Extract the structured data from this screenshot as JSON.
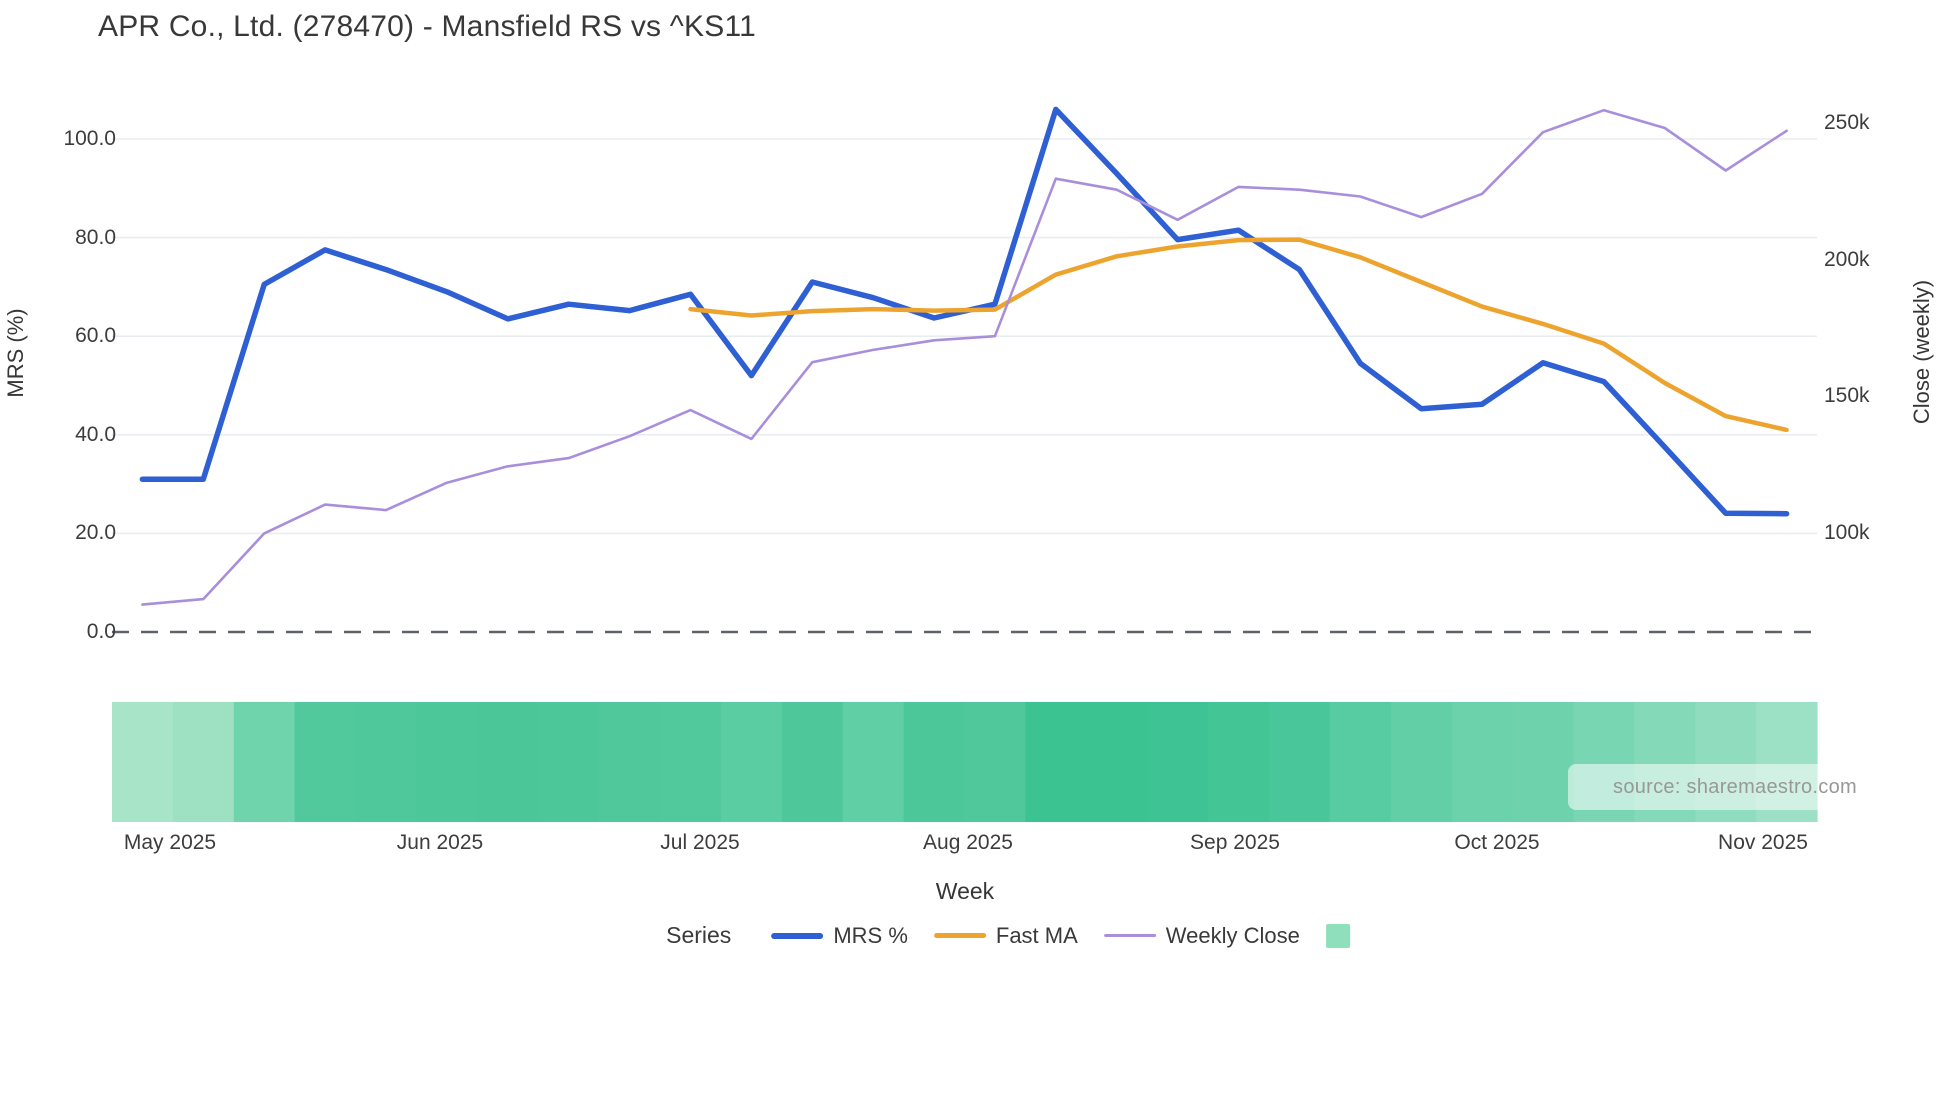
{
  "title": "APR Co., Ltd. (278470) - Mansfield RS vs ^KS11",
  "axes": {
    "left": {
      "label": "MRS (%)",
      "tick_labels": [
        "100.0",
        "80.0",
        "60.0",
        "40.0",
        "20.0",
        "0.0"
      ]
    },
    "right": {
      "label": "Close (weekly)",
      "tick_labels": [
        "250k",
        "200k",
        "150k",
        "100k"
      ]
    },
    "x": {
      "label": "Week",
      "tick_labels": [
        "May 2025",
        "Jun 2025",
        "Jul 2025",
        "Aug 2025",
        "Sep 2025",
        "Oct 2025",
        "Nov 2025"
      ]
    }
  },
  "legend": {
    "title": "Series",
    "items": [
      {
        "label": "MRS %",
        "swatch": "line",
        "color": "#2e5fd3",
        "thickness": 6
      },
      {
        "label": "Fast MA",
        "swatch": "line",
        "color": "#eda42f",
        "thickness": 5
      },
      {
        "label": "Weekly Close",
        "swatch": "line",
        "color": "#a98fdb",
        "thickness": 3.5
      },
      {
        "label": "",
        "swatch": "square",
        "color": "#8edfbc",
        "thickness": 0
      }
    ]
  },
  "source_note": "source: sharemaestro.com",
  "colors": {
    "grid": "#e9edf1",
    "zero_line": "#5f6368",
    "mrs": "#2e5fd3",
    "fast_ma": "#eda42f",
    "weekly_close": "#a98fdb"
  },
  "chart_data": {
    "type": "line",
    "title": "APR Co., Ltd. (278470) - Mansfield RS vs ^KS11",
    "xlabel": "Week",
    "ylabel_left": "MRS (%)",
    "ylabel_right": "Close (weekly)",
    "grid": true,
    "legend_position": "bottom",
    "weeks": 28,
    "x_month_ticks": [
      {
        "label": "May 2025",
        "week_pos": 0.95
      },
      {
        "label": "Jun 2025",
        "week_pos": 5.38
      },
      {
        "label": "Jul 2025",
        "week_pos": 9.65
      },
      {
        "label": "Aug 2025",
        "week_pos": 14.05
      },
      {
        "label": "Sep 2025",
        "week_pos": 18.45
      },
      {
        "label": "Oct 2025",
        "week_pos": 22.74
      },
      {
        "label": "Nov 2025",
        "week_pos": 27.12
      }
    ],
    "left_axis": {
      "tick_values": [
        100,
        80,
        60,
        40,
        20,
        0
      ],
      "range": [
        0,
        110
      ]
    },
    "right_axis": {
      "tick_values_thousands": [
        250,
        200,
        150,
        100
      ],
      "range_thousands": [
        64,
        262
      ]
    },
    "zero_line_dashed": true,
    "series": [
      {
        "name": "MRS %",
        "axis": "left",
        "color": "#2e5fd3",
        "stroke_width": 5.5,
        "values": [
          31,
          31,
          70.5,
          77.5,
          73.5,
          69,
          63.5,
          66.5,
          65.2,
          68.5,
          52,
          71,
          67.8,
          63.7,
          66.5,
          106,
          93,
          79.6,
          81.5,
          73.5,
          54.5,
          45.3,
          46.2,
          54.6,
          50.8,
          37.5,
          24.1,
          24
        ]
      },
      {
        "name": "Fast MA",
        "axis": "left",
        "color": "#eda42f",
        "stroke_width": 4.5,
        "values": [
          null,
          null,
          null,
          null,
          null,
          null,
          null,
          null,
          null,
          65.5,
          64.2,
          65.1,
          65.5,
          65.2,
          65.4,
          72.5,
          76.2,
          78.2,
          79.5,
          79.6,
          76,
          71,
          66,
          62.5,
          58.5,
          50.5,
          43.8,
          41
        ]
      },
      {
        "name": "Weekly Close",
        "axis": "right",
        "color": "#a98fdb",
        "stroke_width": 2.6,
        "values_thousands": [
          74,
          76,
          100,
          110.5,
          108.5,
          118.5,
          124.5,
          127.5,
          135.5,
          145,
          134.5,
          162.5,
          167,
          170.5,
          172,
          229.5,
          225.5,
          214.5,
          226.5,
          225.5,
          223,
          215.5,
          224,
          246.5,
          254.5,
          248,
          232.5,
          247
        ]
      }
    ],
    "band": {
      "name": "weekly-strength-band",
      "colors": [
        "#a7e4c8",
        "#9de1c2",
        "#6fd4ac",
        "#52c99d",
        "#4fc89b",
        "#4cc79a",
        "#4ac698",
        "#4cc79a",
        "#50c89c",
        "#52c99d",
        "#5bcda3",
        "#4ec89b",
        "#60cfa6",
        "#4cc79a",
        "#50c89c",
        "#3cc392",
        "#3cc392",
        "#3ec494",
        "#44c596",
        "#4ac79a",
        "#57cba1",
        "#62cfa7",
        "#6bd2ab",
        "#6ed3ad",
        "#79d6b3",
        "#84dab8",
        "#8fdcbe",
        "#9ce1c5"
      ]
    }
  }
}
